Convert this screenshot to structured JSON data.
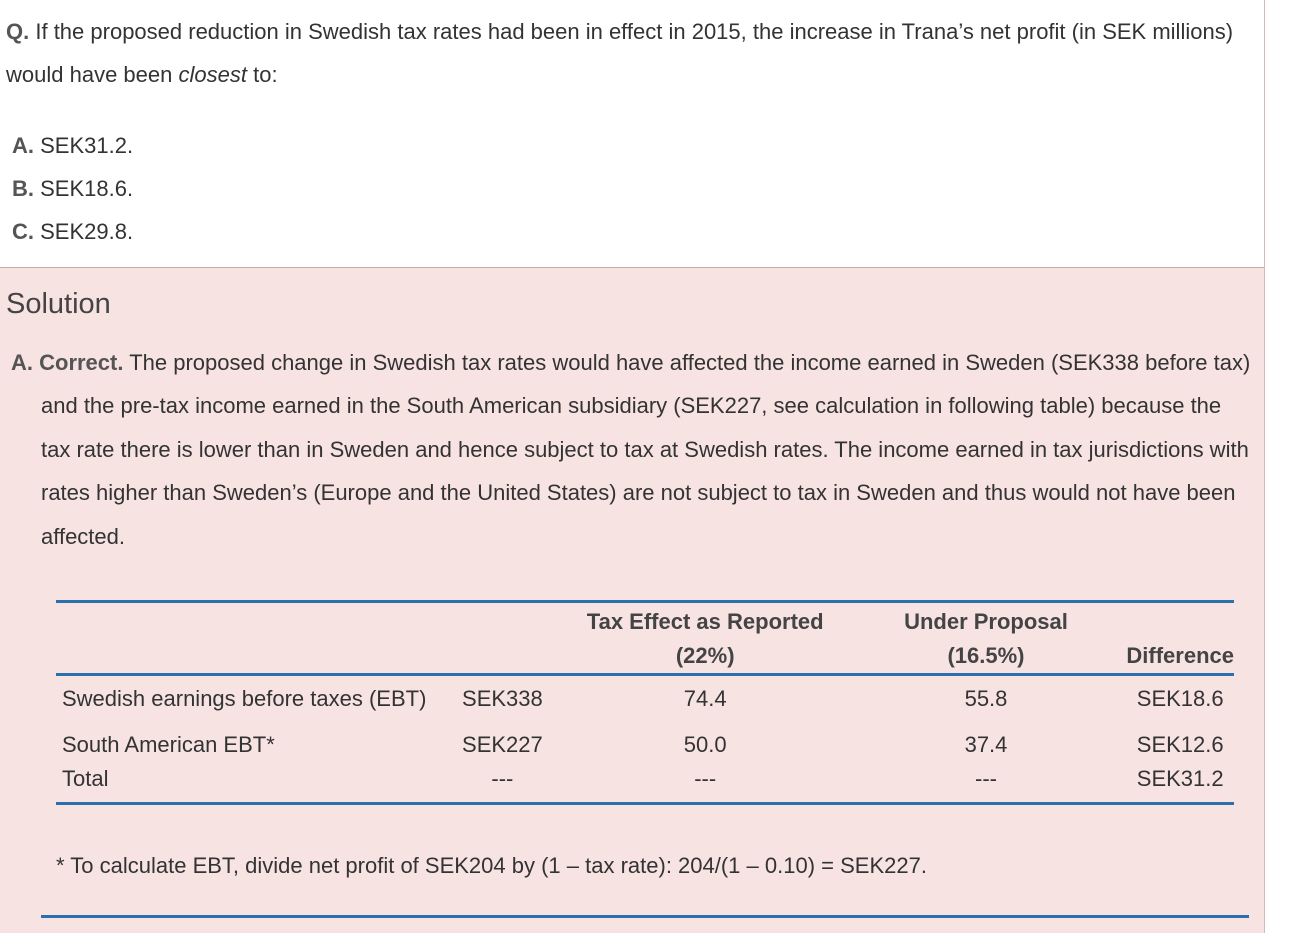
{
  "question": {
    "label": "Q.",
    "text_before": "If the proposed reduction in Swedish tax rates had been in effect in 2015, the increase in Trana’s net profit (in SEK millions) would have been",
    "emphasis": "closest",
    "text_after": "to:"
  },
  "options": [
    {
      "letter": "A.",
      "text": "SEK31.2."
    },
    {
      "letter": "B.",
      "text": "SEK18.6."
    },
    {
      "letter": "C.",
      "text": "SEK29.8."
    }
  ],
  "solution": {
    "heading": "Solution",
    "answer_label": "A. Correct.",
    "explanation": "The proposed change in Swedish tax rates would have affected the income earned in Sweden (SEK338 before tax) and the pre-tax income earned in the South American subsidiary (SEK227, see calculation in following table) because the tax rate there is lower than in Sweden and hence subject to tax at Swedish rates. The income earned in tax jurisdictions with rates higher than Sweden’s (Europe and the United States) are not subject to tax in Sweden and thus would not have been affected."
  },
  "table": {
    "headers": {
      "reported_line1": "Tax Effect as Reported",
      "reported_line2": "(22%)",
      "proposal_line1": "Under Proposal",
      "proposal_line2": "(16.5%)",
      "difference": "Difference"
    },
    "rows": [
      {
        "label": "Swedish earnings before taxes (EBT)",
        "sek": "SEK338",
        "reported": "74.4",
        "proposal": "55.8",
        "difference": "SEK18.6"
      },
      {
        "label": "South American EBT*",
        "sek": "SEK227",
        "reported": "50.0",
        "proposal": "37.4",
        "difference": "SEK12.6"
      },
      {
        "label": "Total",
        "sek": "---",
        "reported": "---",
        "proposal": "---",
        "difference": "SEK31.2"
      }
    ],
    "footnote": "* To calculate EBT, divide net profit of SEK204 by (1 – tax rate): 204/(1 – 0.10) = SEK227."
  }
}
